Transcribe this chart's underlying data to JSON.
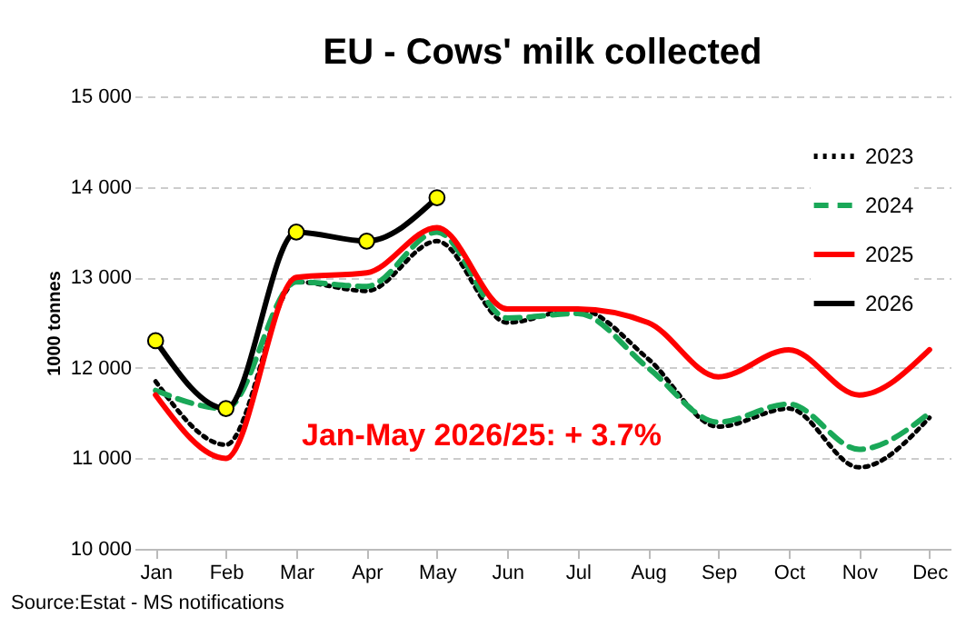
{
  "chart_data": {
    "type": "line",
    "title": "EU - Cows' milk collected",
    "ylabel": "1000 tonnes",
    "categories": [
      "Jan",
      "Feb",
      "Mar",
      "Apr",
      "May",
      "Jun",
      "Jul",
      "Aug",
      "Sep",
      "Oct",
      "Nov",
      "Dec"
    ],
    "series": [
      {
        "name": "2023",
        "color": "#000000",
        "line_style": "dotted",
        "marker": "none",
        "values": [
          11850,
          11150,
          12950,
          12850,
          13400,
          12500,
          12650,
          12100,
          11350,
          11550,
          10900,
          11450
        ]
      },
      {
        "name": "2024",
        "color": "#1aa858",
        "line_style": "dashed",
        "marker": "none",
        "values": [
          11750,
          11550,
          12950,
          12900,
          13500,
          12550,
          12600,
          12000,
          11400,
          11600,
          11100,
          11500
        ]
      },
      {
        "name": "2025",
        "color": "#ff0000",
        "line_style": "solid",
        "marker": "none",
        "values": [
          11700,
          11000,
          13000,
          13050,
          13550,
          12650,
          12650,
          12500,
          11900,
          12200,
          11700,
          12200
        ]
      },
      {
        "name": "2026",
        "color": "#000000",
        "line_style": "solid",
        "marker": "circle",
        "values": [
          12300,
          11550,
          13500,
          13400,
          13880,
          null,
          null,
          null,
          null,
          null,
          null,
          null
        ]
      }
    ],
    "ylim": [
      10000,
      15000
    ],
    "yticks": [
      {
        "value": 10000,
        "label": "10 000"
      },
      {
        "value": 11000,
        "label": "11 000"
      },
      {
        "value": 12000,
        "label": "12 000"
      },
      {
        "value": 13000,
        "label": "13 000"
      },
      {
        "value": 14000,
        "label": "14 000"
      },
      {
        "value": 15000,
        "label": "15 000"
      }
    ],
    "grid": "y",
    "legend": "top right",
    "annotations": [
      "Jan-May 2026/25: + 3.7%",
      "Source:Estat - MS notifications"
    ]
  }
}
